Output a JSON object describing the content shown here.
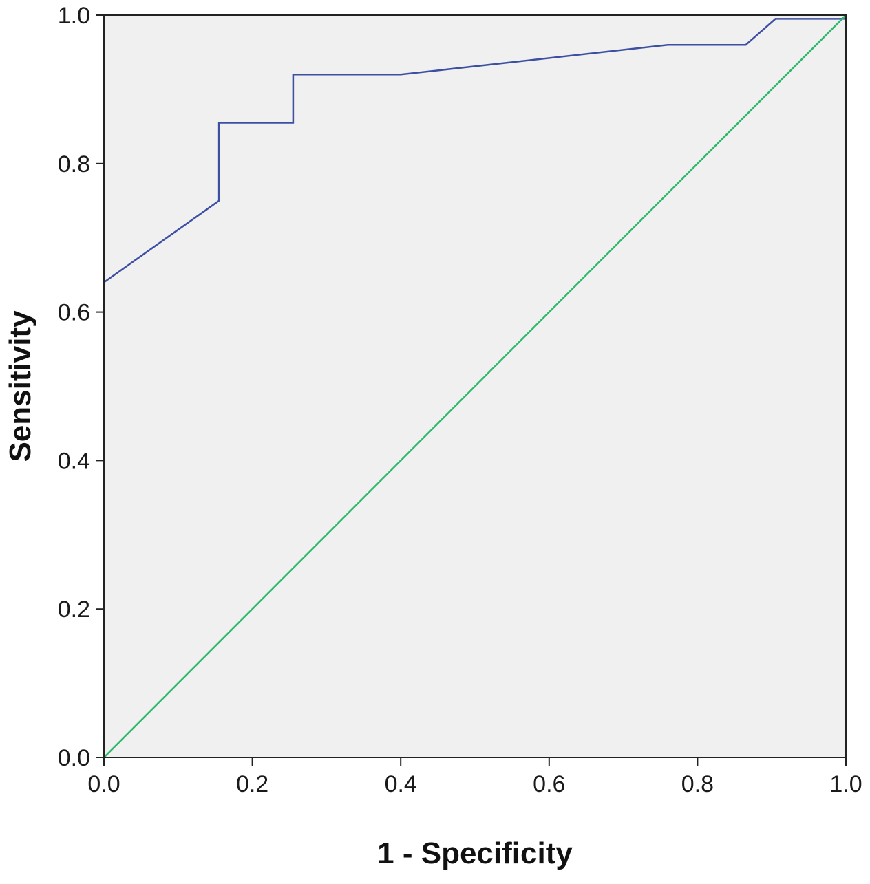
{
  "chart_data": {
    "type": "line",
    "title": "",
    "xlabel": "1 - Specificity",
    "ylabel": "Sensitivity",
    "xlim": [
      0.0,
      1.0
    ],
    "ylim": [
      0.0,
      1.0
    ],
    "x_ticks": [
      "0.0",
      "0.2",
      "0.4",
      "0.6",
      "0.8",
      "1.0"
    ],
    "y_ticks": [
      "0.0",
      "0.2",
      "0.4",
      "0.6",
      "0.8",
      "1.0"
    ],
    "grid": false,
    "legend": "none",
    "background_color": "#f0f0f0",
    "series": [
      {
        "color": "#3d4fa3",
        "x": [
          0.0,
          0.155,
          0.155,
          0.255,
          0.255,
          0.4,
          0.76,
          0.865,
          0.905,
          1.0
        ],
        "y": [
          0.64,
          0.75,
          0.855,
          0.855,
          0.92,
          0.92,
          0.96,
          0.96,
          0.995,
          0.995
        ]
      },
      {
        "color": "#2db86a",
        "x": [
          0.0,
          1.0
        ],
        "y": [
          0.0,
          1.0
        ]
      }
    ]
  }
}
